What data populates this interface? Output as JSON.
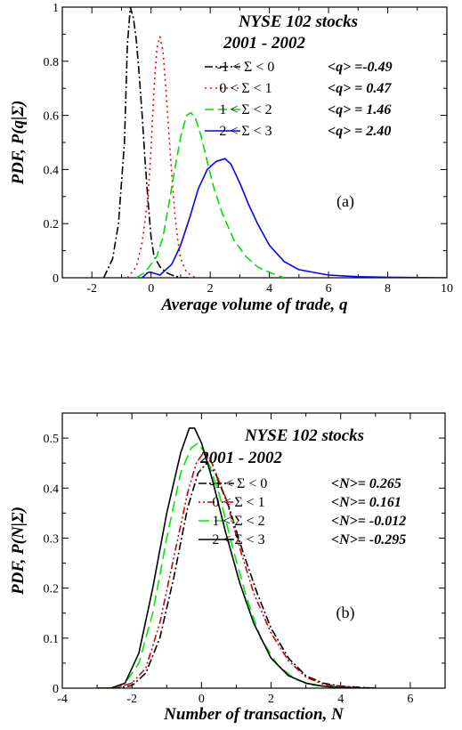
{
  "chart_data": [
    {
      "type": "line",
      "title": "NYSE 102 stocks",
      "subtitle": "2001 - 2002",
      "xlabel": "Average volume of trade, q",
      "ylabel": "PDF, P(q|Σ)",
      "panel_label": "(a)",
      "xlim": [
        -3,
        10
      ],
      "ylim": [
        0,
        1
      ],
      "xticks": [
        -2,
        0,
        2,
        4,
        6,
        8,
        10
      ],
      "yticks": [
        0,
        0.2,
        0.4,
        0.6,
        0.8,
        1
      ],
      "xtick_labels": [
        "-2",
        "0",
        "2",
        "4",
        "6",
        "8",
        "10"
      ],
      "ytick_labels": [
        "0",
        "0.2",
        "0.4",
        "0.6",
        "0.8",
        "1"
      ],
      "grid": false,
      "legend_position": "top-right",
      "series": [
        {
          "name": "-1 < Σ < 0",
          "stat": "<q> =-0.49",
          "color": "#000000",
          "dash": "9,3,2,3",
          "x": [
            -1.6,
            -1.3,
            -1.1,
            -0.9,
            -0.8,
            -0.7,
            -0.6,
            -0.5,
            -0.4,
            -0.3,
            -0.2,
            -0.1,
            0.0,
            0.1,
            0.3,
            0.5,
            0.7,
            1.0,
            1.3
          ],
          "y": [
            0.0,
            0.07,
            0.2,
            0.5,
            0.86,
            1.0,
            0.96,
            0.88,
            0.75,
            0.6,
            0.43,
            0.28,
            0.15,
            0.08,
            0.04,
            0.02,
            0.01,
            0.0,
            0.0
          ]
        },
        {
          "name": "0 < Σ < 1",
          "stat": "<q> = 0.47",
          "color": "#ff0000",
          "dash": "2,4",
          "x": [
            -0.8,
            -0.5,
            -0.3,
            -0.1,
            0.0,
            0.1,
            0.2,
            0.3,
            0.4,
            0.5,
            0.6,
            0.7,
            0.8,
            0.9,
            1.0,
            1.2,
            1.5
          ],
          "y": [
            0.0,
            0.04,
            0.13,
            0.3,
            0.48,
            0.7,
            0.85,
            0.89,
            0.84,
            0.7,
            0.54,
            0.38,
            0.24,
            0.14,
            0.07,
            0.02,
            0.0
          ]
        },
        {
          "name": "1 < Σ < 2",
          "stat": "<q> = 1.46",
          "color": "#00dd00",
          "dash": "10,5",
          "x": [
            -0.5,
            -0.2,
            0.0,
            0.2,
            0.4,
            0.6,
            0.8,
            1.0,
            1.2,
            1.35,
            1.5,
            1.7,
            1.9,
            2.1,
            2.4,
            2.8,
            3.2,
            3.6,
            4.0,
            4.5
          ],
          "y": [
            0.0,
            0.02,
            0.05,
            0.08,
            0.15,
            0.27,
            0.4,
            0.52,
            0.6,
            0.61,
            0.59,
            0.52,
            0.43,
            0.34,
            0.24,
            0.14,
            0.08,
            0.04,
            0.02,
            0.0
          ]
        },
        {
          "name": "2 < Σ < 3",
          "stat": "<q> = 2.40",
          "color": "#0000ff",
          "dash": "",
          "x": [
            -0.3,
            -0.1,
            0.0,
            0.3,
            0.7,
            1.0,
            1.3,
            1.6,
            1.9,
            2.2,
            2.5,
            2.7,
            3.0,
            3.3,
            3.6,
            4.0,
            4.5,
            5.0,
            6.0,
            7.0,
            8.0,
            10.0
          ],
          "y": [
            0.0,
            0.02,
            0.02,
            0.01,
            0.05,
            0.12,
            0.22,
            0.33,
            0.4,
            0.43,
            0.44,
            0.42,
            0.35,
            0.27,
            0.2,
            0.12,
            0.06,
            0.03,
            0.01,
            0.004,
            0.002,
            0.0
          ]
        }
      ]
    },
    {
      "type": "line",
      "title": "NYSE 102 stocks",
      "subtitle": "2001 - 2002",
      "xlabel": "Number of transaction, N",
      "ylabel": "PDF, P(N|Σ)",
      "panel_label": "(b)",
      "xlim": [
        -4,
        7
      ],
      "ylim": [
        0,
        0.55
      ],
      "xticks": [
        -4,
        -2,
        0,
        2,
        4,
        6
      ],
      "yticks": [
        0,
        0.1,
        0.2,
        0.3,
        0.4,
        0.5
      ],
      "xtick_labels": [
        "-4",
        "-2",
        "0",
        "2",
        "4",
        "6"
      ],
      "ytick_labels": [
        "0",
        "0.1",
        "0.2",
        "0.3",
        "0.4",
        "0.5"
      ],
      "grid": false,
      "legend_position": "top-right",
      "series": [
        {
          "name": "-1 < Σ < 0",
          "stat": "<N>= 0.265",
          "color": "#000000",
          "dash": "9,3,2,3",
          "x": [
            -3.0,
            -2.5,
            -2.0,
            -1.6,
            -1.2,
            -0.8,
            -0.4,
            -0.1,
            0.15,
            0.4,
            0.8,
            1.2,
            1.6,
            2.0,
            2.5,
            3.0,
            3.5,
            4.0,
            5.0
          ],
          "y": [
            0.0,
            0.0,
            0.005,
            0.03,
            0.1,
            0.22,
            0.36,
            0.43,
            0.45,
            0.43,
            0.36,
            0.27,
            0.19,
            0.12,
            0.06,
            0.025,
            0.01,
            0.004,
            0.0
          ]
        },
        {
          "name": "0 < Σ < 1",
          "stat": "<N>= 0.161",
          "color": "#cc0000",
          "dash": "2,3,2,3,8,3",
          "x": [
            -3.0,
            -2.5,
            -2.0,
            -1.6,
            -1.2,
            -0.8,
            -0.4,
            -0.15,
            0.05,
            0.3,
            0.7,
            1.1,
            1.5,
            2.0,
            2.5,
            3.0,
            3.5,
            4.0,
            5.0
          ],
          "y": [
            0.0,
            0.0,
            0.01,
            0.04,
            0.13,
            0.26,
            0.39,
            0.45,
            0.47,
            0.45,
            0.38,
            0.28,
            0.19,
            0.11,
            0.055,
            0.022,
            0.008,
            0.003,
            0.0
          ]
        },
        {
          "name": "1 < Σ < 2",
          "stat": "<N>= -0.012",
          "color": "#00ee00",
          "dash": "12,6",
          "x": [
            -3.0,
            -2.6,
            -2.2,
            -1.8,
            -1.4,
            -1.0,
            -0.6,
            -0.3,
            -0.1,
            0.1,
            0.5,
            0.9,
            1.3,
            1.7,
            2.2,
            2.7,
            3.2,
            3.8,
            4.5
          ],
          "y": [
            0.0,
            0.0,
            0.01,
            0.05,
            0.15,
            0.3,
            0.43,
            0.48,
            0.49,
            0.47,
            0.39,
            0.28,
            0.18,
            0.1,
            0.045,
            0.018,
            0.006,
            0.002,
            0.0
          ]
        },
        {
          "name": "2 < Σ < 3",
          "stat": "<N>= -0.295",
          "color": "#000000",
          "dash": "",
          "x": [
            -3.0,
            -2.6,
            -2.2,
            -1.8,
            -1.4,
            -1.0,
            -0.6,
            -0.35,
            -0.2,
            0.0,
            0.3,
            0.7,
            1.1,
            1.5,
            2.0,
            2.5,
            3.0,
            3.5,
            4.0,
            5.0
          ],
          "y": [
            0.0,
            0.0,
            0.01,
            0.07,
            0.2,
            0.35,
            0.47,
            0.52,
            0.52,
            0.49,
            0.42,
            0.31,
            0.21,
            0.13,
            0.06,
            0.025,
            0.01,
            0.004,
            0.001,
            0.0
          ]
        }
      ]
    }
  ]
}
